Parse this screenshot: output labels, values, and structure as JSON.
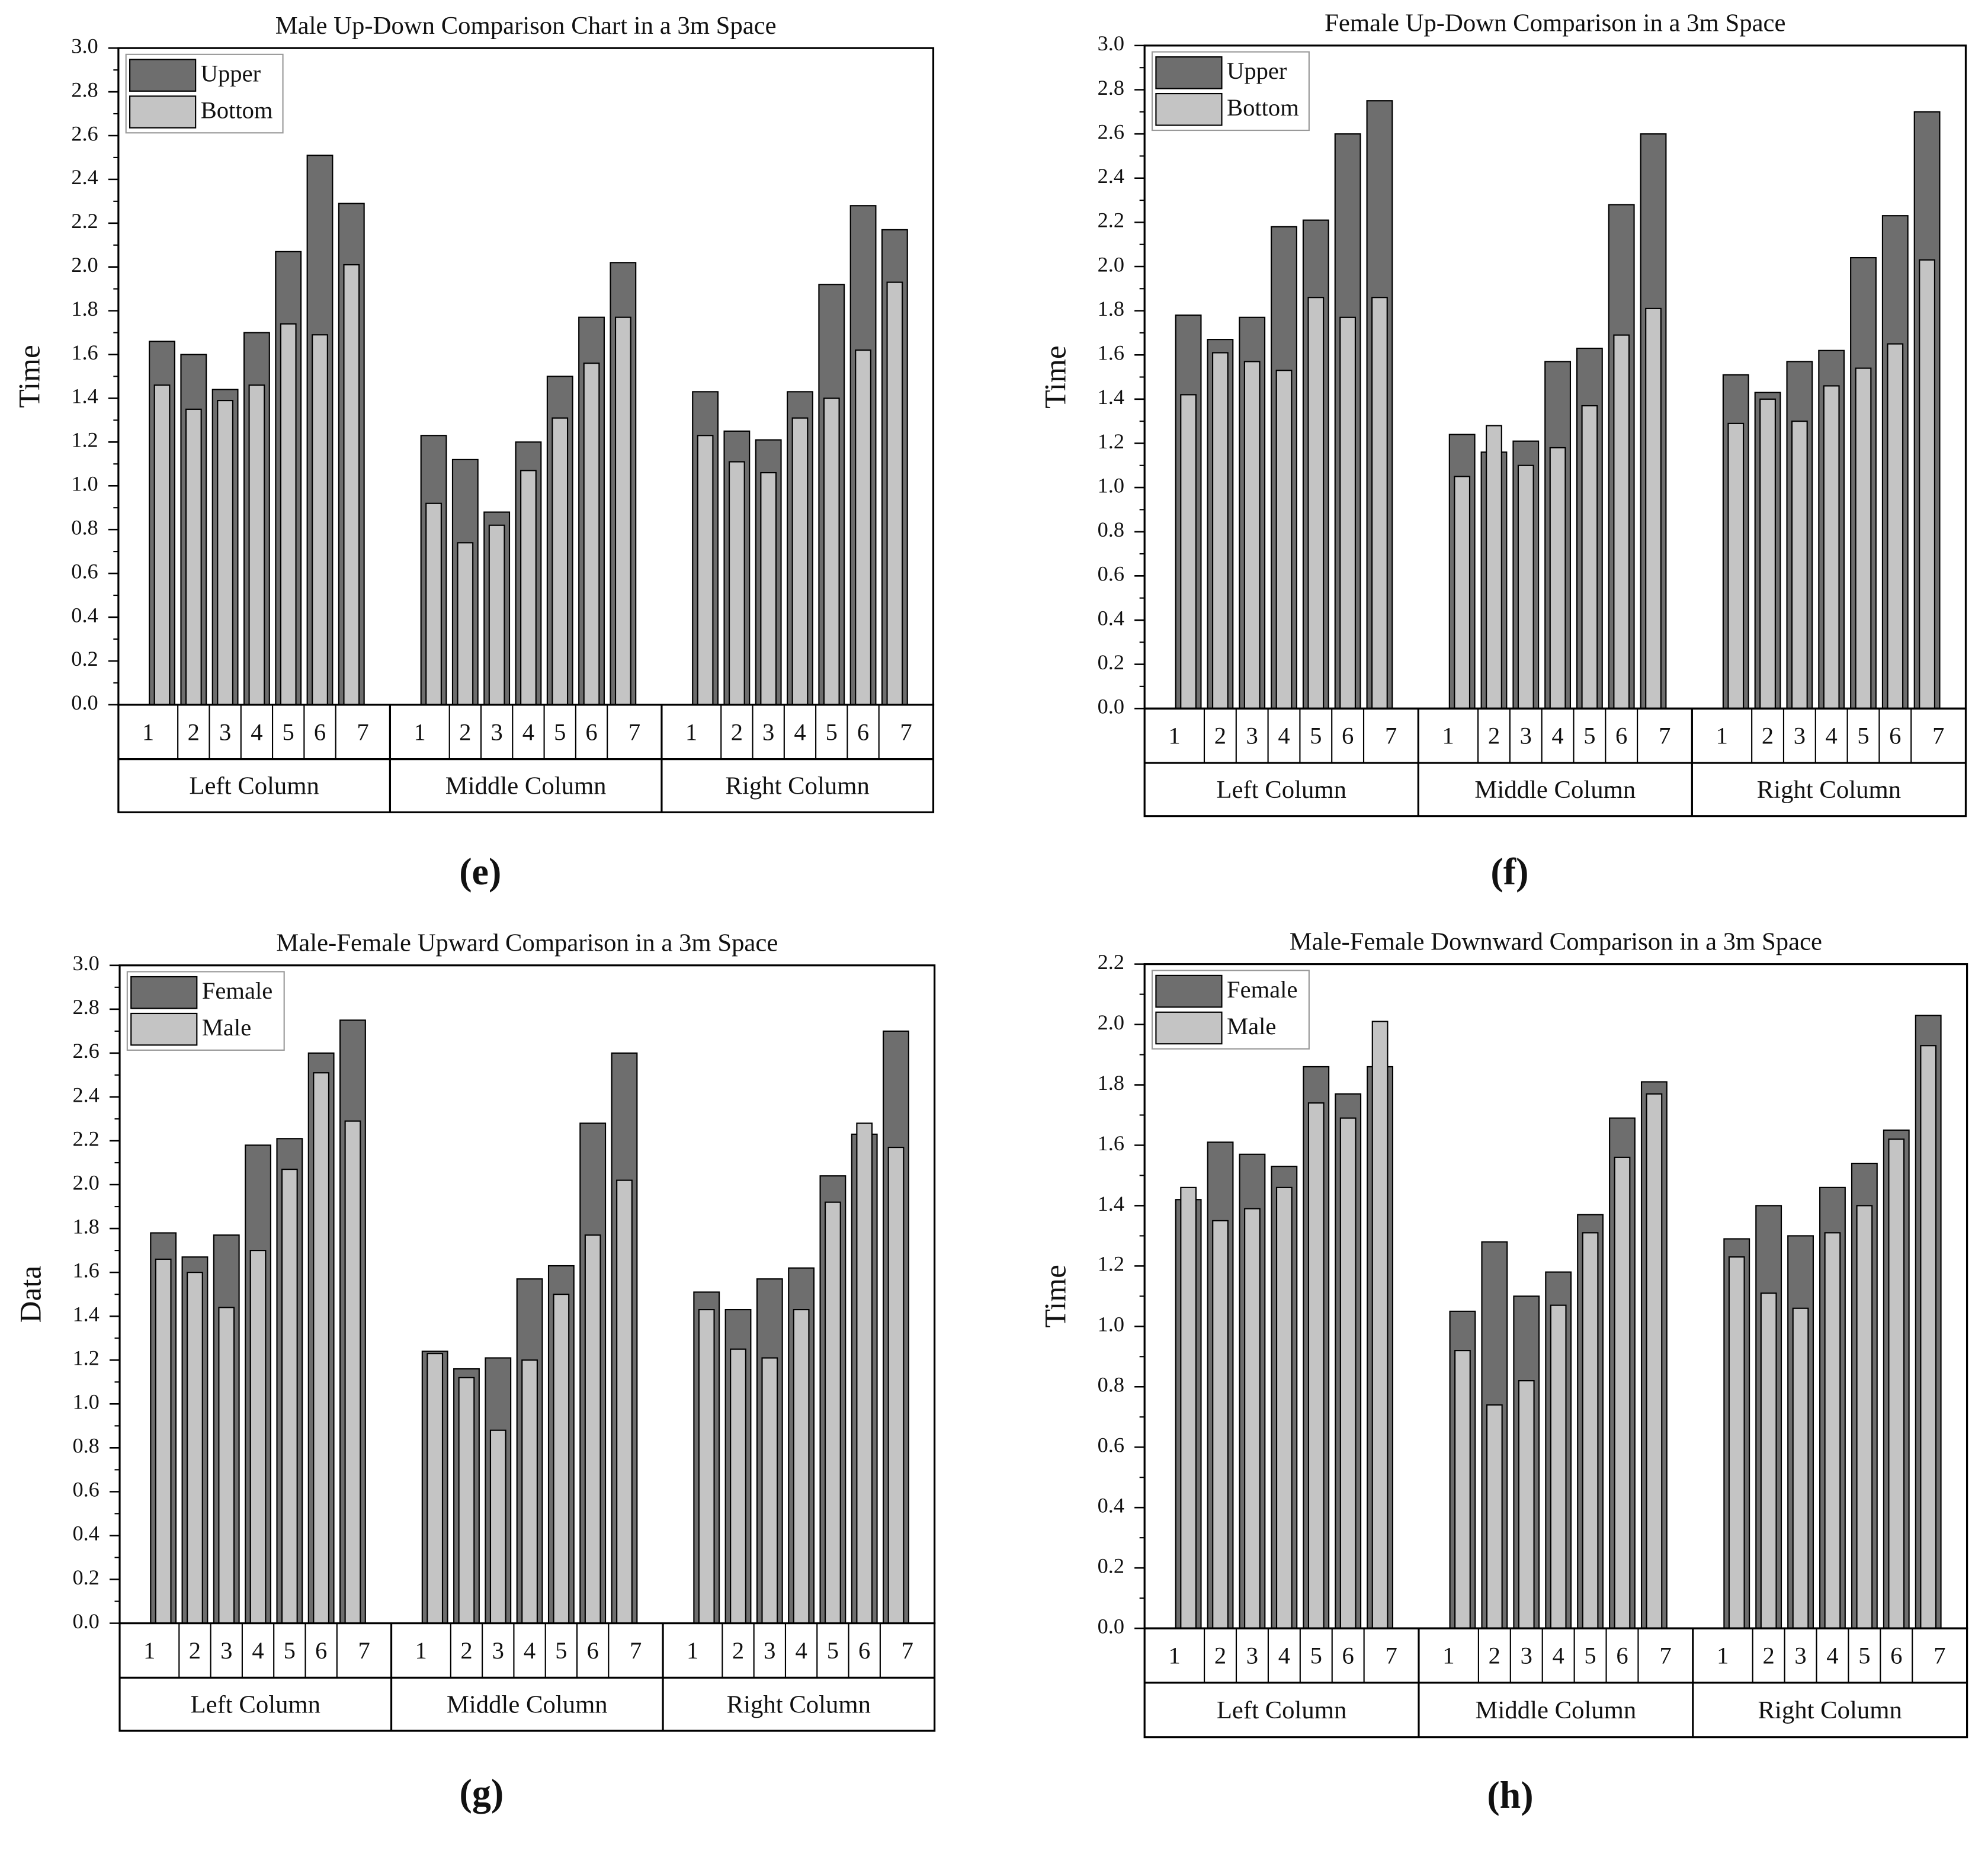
{
  "chart_data": [
    {
      "type": "bar",
      "title": "Male Up-Down Comparison Chart in a 3m Space",
      "ylabel": "Time",
      "panel_label": "(e)",
      "groups": [
        "Left Column",
        "Middle Column",
        "Right Column"
      ],
      "categories": [
        "1",
        "2",
        "3",
        "4",
        "5",
        "6",
        "7",
        "1",
        "2",
        "3",
        "4",
        "5",
        "6",
        "7",
        "1",
        "2",
        "3",
        "4",
        "5",
        "6",
        "7"
      ],
      "series": [
        {
          "name": "Upper",
          "color": "#6e6e6e",
          "values": [
            1.66,
            1.6,
            1.44,
            1.7,
            2.07,
            2.51,
            2.29,
            1.23,
            1.12,
            0.88,
            1.2,
            1.5,
            1.77,
            2.02,
            1.43,
            1.25,
            1.21,
            1.43,
            1.92,
            2.28,
            2.17
          ]
        },
        {
          "name": "Bottom",
          "color": "#c4c4c4",
          "values": [
            1.46,
            1.35,
            1.39,
            1.46,
            1.74,
            1.69,
            2.01,
            0.92,
            0.74,
            0.82,
            1.07,
            1.31,
            1.56,
            1.77,
            1.23,
            1.11,
            1.06,
            1.31,
            1.4,
            1.62,
            1.93
          ]
        }
      ],
      "ylim": [
        0,
        3
      ],
      "yticks": [
        {
          "value": 0,
          "label": "0.0"
        },
        0.2,
        0.4,
        0.6,
        0.8,
        {
          "value": 1,
          "label": "1.0"
        },
        1.2,
        1.4,
        1.6,
        1.8,
        {
          "value": 2,
          "label": "2.0"
        },
        2.2,
        2.4,
        2.6,
        2.8,
        {
          "value": 3,
          "label": "3.0"
        }
      ]
    },
    {
      "type": "bar",
      "title": "Female Up-Down Comparison in a 3m Space",
      "ylabel": "Time",
      "panel_label": "(f)",
      "groups": [
        "Left Column",
        "Middle Column",
        "Right Column"
      ],
      "categories": [
        "1",
        "2",
        "3",
        "4",
        "5",
        "6",
        "7",
        "1",
        "2",
        "3",
        "4",
        "5",
        "6",
        "7",
        "1",
        "2",
        "3",
        "4",
        "5",
        "6",
        "7"
      ],
      "series": [
        {
          "name": "Upper",
          "color": "#6e6e6e",
          "values": [
            1.78,
            1.67,
            1.77,
            2.18,
            2.21,
            2.6,
            2.75,
            1.24,
            1.16,
            1.21,
            1.57,
            1.63,
            2.28,
            2.6,
            1.51,
            1.43,
            1.57,
            1.62,
            2.04,
            2.23,
            2.7
          ]
        },
        {
          "name": "Bottom",
          "color": "#c4c4c4",
          "values": [
            1.42,
            1.61,
            1.57,
            1.53,
            1.86,
            1.77,
            1.86,
            1.05,
            1.28,
            1.1,
            1.18,
            1.37,
            1.69,
            1.81,
            1.29,
            1.4,
            1.3,
            1.46,
            1.54,
            1.65,
            2.03
          ]
        }
      ],
      "ylim": [
        0,
        3
      ],
      "yticks": [
        {
          "value": 0,
          "label": "0.0"
        },
        0.2,
        0.4,
        0.6,
        0.8,
        {
          "value": 1,
          "label": "1.0"
        },
        1.2,
        1.4,
        1.6,
        1.8,
        {
          "value": 2,
          "label": "2.0"
        },
        2.2,
        2.4,
        2.6,
        2.8,
        {
          "value": 3,
          "label": "3.0"
        }
      ]
    },
    {
      "type": "bar",
      "title": "Male-Female Upward Comparison in a 3m Space",
      "ylabel": "Data",
      "panel_label": "(g)",
      "groups": [
        "Left Column",
        "Middle Column",
        "Right Column"
      ],
      "categories": [
        "1",
        "2",
        "3",
        "4",
        "5",
        "6",
        "7",
        "1",
        "2",
        "3",
        "4",
        "5",
        "6",
        "7",
        "1",
        "2",
        "3",
        "4",
        "5",
        "6",
        "7"
      ],
      "series": [
        {
          "name": "Female",
          "color": "#6e6e6e",
          "values": [
            1.78,
            1.67,
            1.77,
            2.18,
            2.21,
            2.6,
            2.75,
            1.24,
            1.16,
            1.21,
            1.57,
            1.63,
            2.28,
            2.6,
            1.51,
            1.43,
            1.57,
            1.62,
            2.04,
            2.23,
            2.7
          ]
        },
        {
          "name": "Male",
          "color": "#c4c4c4",
          "values": [
            1.66,
            1.6,
            1.44,
            1.7,
            2.07,
            2.51,
            2.29,
            1.23,
            1.12,
            0.88,
            1.2,
            1.5,
            1.77,
            2.02,
            1.43,
            1.25,
            1.21,
            1.43,
            1.92,
            2.28,
            2.17
          ]
        }
      ],
      "ylim": [
        0,
        3
      ],
      "yticks": [
        {
          "value": 0,
          "label": "0.0"
        },
        0.2,
        0.4,
        0.6,
        0.8,
        {
          "value": 1,
          "label": "1.0"
        },
        1.2,
        1.4,
        1.6,
        1.8,
        {
          "value": 2,
          "label": "2.0"
        },
        2.2,
        2.4,
        2.6,
        2.8,
        {
          "value": 3,
          "label": "3.0"
        }
      ]
    },
    {
      "type": "bar",
      "title": "Male-Female Downward Comparison in a 3m Space",
      "ylabel": "Time",
      "panel_label": "(h)",
      "groups": [
        "Left Column",
        "Middle Column",
        "Right Column"
      ],
      "categories": [
        "1",
        "2",
        "3",
        "4",
        "5",
        "6",
        "7",
        "1",
        "2",
        "3",
        "4",
        "5",
        "6",
        "7",
        "1",
        "2",
        "3",
        "4",
        "5",
        "6",
        "7"
      ],
      "series": [
        {
          "name": "Female",
          "color": "#6e6e6e",
          "values": [
            1.42,
            1.61,
            1.57,
            1.53,
            1.86,
            1.77,
            1.86,
            1.05,
            1.28,
            1.1,
            1.18,
            1.37,
            1.69,
            1.81,
            1.29,
            1.4,
            1.3,
            1.46,
            1.54,
            1.65,
            2.03
          ]
        },
        {
          "name": "Male",
          "color": "#c4c4c4",
          "values": [
            1.46,
            1.35,
            1.39,
            1.46,
            1.74,
            1.69,
            2.01,
            0.92,
            0.74,
            0.82,
            1.07,
            1.31,
            1.56,
            1.77,
            1.23,
            1.11,
            1.06,
            1.31,
            1.4,
            1.62,
            1.93
          ]
        }
      ],
      "ylim": [
        0,
        2.2
      ],
      "yticks": [
        {
          "value": 0,
          "label": "0.0"
        },
        0.2,
        0.4,
        0.6,
        0.8,
        {
          "value": 1,
          "label": "1.0"
        },
        1.2,
        1.4,
        1.6,
        1.8,
        {
          "value": 2,
          "label": "2.0"
        },
        2.2
      ]
    }
  ]
}
